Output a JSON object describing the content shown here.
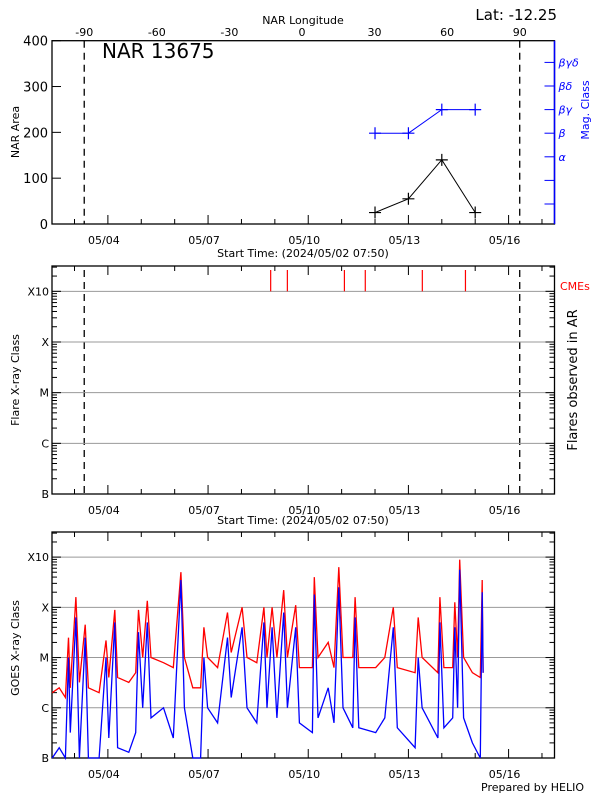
{
  "header": {
    "lat_label": "Lat: -12.25",
    "region_title": "NAR 13675"
  },
  "time_axis": {
    "start": "2024-05-02T07:50",
    "end": "2024-05-17T09:00",
    "tick_labels": [
      "05/04",
      "05/07",
      "05/10",
      "05/13",
      "05/16"
    ],
    "tick_dates": [
      "2024-05-04T00:00",
      "2024-05-07T00:00",
      "2024-05-10T00:00",
      "2024-05-13T00:00",
      "2024-05-16T00:00"
    ],
    "xlabel": "Start Time: (2024/05/02 07:50)"
  },
  "limb_lines": [
    "2024-05-03T07:00",
    "2024-05-16T08:00"
  ],
  "chart_data": [
    {
      "type": "line",
      "title": "NAR 13675",
      "xlabel": "Start Time: (2024/05/02 07:50)",
      "ylabel": "NAR Area",
      "ylim": [
        0,
        400
      ],
      "yticks": [
        "0",
        "100",
        "200",
        "300",
        "400"
      ],
      "top_axis": {
        "label": "NAR Longitude",
        "ticks": [
          "-90",
          "-60",
          "-30",
          "0",
          "30",
          "60",
          "90"
        ]
      },
      "right_axis": {
        "label": "Mag. Class",
        "color": "#0000ff",
        "ticks": [
          "",
          "",
          "α",
          "β",
          "βγ",
          "βδ",
          "βγδ"
        ]
      },
      "x": [
        "2024-05-12T00:00",
        "2024-05-13T00:00",
        "2024-05-14T00:00",
        "2024-05-15T00:00"
      ],
      "series": [
        {
          "axis": "left",
          "color": "#000000",
          "values": [
            25,
            55,
            140,
            25
          ]
        },
        {
          "axis": "right",
          "color": "#0000ff",
          "values": [
            "β",
            "β",
            "βγ",
            "βγ"
          ]
        }
      ]
    },
    {
      "type": "event",
      "xlabel": "Start Time: (2024/05/02 07:50)",
      "ylabel": "Flare X-ray Class",
      "right_label": "Flares observed in AR",
      "yscale": "log",
      "ylim": [
        1e-07,
        0.00316
      ],
      "yticks": [
        "B",
        "C",
        "M",
        "X",
        "X10"
      ],
      "events_label": "CMEs",
      "events_color": "#ff0000",
      "cme_times": [
        "2024-05-08T21:00",
        "2024-05-09T09:00",
        "2024-05-11T02:00",
        "2024-05-11T17:00",
        "2024-05-13T10:00",
        "2024-05-14T17:00"
      ]
    },
    {
      "type": "line",
      "ylabel": "GOES X-ray Class",
      "yscale": "log",
      "ylim": [
        1e-07,
        0.00316
      ],
      "yticks": [
        "B",
        "C",
        "M",
        "X",
        "X10"
      ],
      "x": [
        "2024-05-02T08:00",
        "2024-05-02T13:00",
        "2024-05-02T17:30",
        "2024-05-02T19:40",
        "2024-05-02T21:00",
        "2024-05-03T01:00",
        "2024-05-03T03:30",
        "2024-05-03T07:40",
        "2024-05-03T10:00",
        "2024-05-03T17:40",
        "2024-05-03T22:40",
        "2024-05-04T00:40",
        "2024-05-04T05:00",
        "2024-05-04T07:00",
        "2024-05-04T15:00",
        "2024-05-04T20:00",
        "2024-05-04T22:00",
        "2024-05-05T01:00",
        "2024-05-05T04:20",
        "2024-05-05T07:00",
        "2024-05-05T16:00",
        "2024-05-05T23:00",
        "2024-05-06T04:30",
        "2024-05-06T07:00",
        "2024-05-06T13:00",
        "2024-05-06T18:40",
        "2024-05-06T21:00",
        "2024-05-06T23:40",
        "2024-05-07T06:50",
        "2024-05-07T14:00",
        "2024-05-07T16:40",
        "2024-05-08T00:30",
        "2024-05-08T04:00",
        "2024-05-08T11:00",
        "2024-05-08T16:10",
        "2024-05-08T18:20",
        "2024-05-08T22:00",
        "2024-05-09T01:30",
        "2024-05-09T06:20",
        "2024-05-09T09:00",
        "2024-05-09T15:00",
        "2024-05-09T17:40",
        "2024-05-10T03:00",
        "2024-05-10T04:20",
        "2024-05-10T07:00",
        "2024-05-10T14:20",
        "2024-05-10T18:30",
        "2024-05-10T22:00",
        "2024-05-11T01:00",
        "2024-05-11T08:00",
        "2024-05-11T09:40",
        "2024-05-11T12:20",
        "2024-05-12T00:30",
        "2024-05-12T07:00",
        "2024-05-12T13:10",
        "2024-05-12T16:00",
        "2024-05-13T04:50",
        "2024-05-13T07:00",
        "2024-05-13T09:50",
        "2024-05-13T21:10",
        "2024-05-13T22:40",
        "2024-05-14T01:30",
        "2024-05-14T07:50",
        "2024-05-14T09:20",
        "2024-05-14T11:20",
        "2024-05-14T12:50",
        "2024-05-14T15:40",
        "2024-05-14T22:00",
        "2024-05-15T03:40",
        "2024-05-15T05:00",
        "2024-05-15T05:40"
      ],
      "series": [
        {
          "color": "#ff0000",
          "values": [
            2e-06,
            2.5e-06,
            1.6e-06,
            2.5e-05,
            2.5e-06,
            0.00016,
            3.2e-06,
            4.5e-05,
            2.5e-06,
            2e-06,
            2.2e-05,
            4e-06,
            8.9e-05,
            4e-06,
            3.2e-06,
            5e-06,
            8.9e-05,
            1e-05,
            0.000135,
            1e-05,
            7.9e-06,
            6.3e-06,
            0.0005,
            1e-05,
            2.5e-06,
            2.5e-06,
            4e-05,
            1e-05,
            6.3e-06,
            7.9e-05,
            1.26e-05,
            0.0001,
            1e-05,
            7.9e-06,
            0.0001,
            1e-05,
            0.0001,
            1e-05,
            0.00022,
            1e-05,
            0.00011,
            6.3e-06,
            6.3e-06,
            0.0004,
            1e-05,
            2e-05,
            6.3e-06,
            0.00063,
            1e-05,
            1e-05,
            0.00016,
            6.3e-06,
            6.3e-06,
            1e-05,
            0.0001,
            6.3e-06,
            5e-06,
            6.3e-05,
            1e-05,
            5e-06,
            0.00016,
            6.3e-06,
            6.3e-06,
            0.000126,
            1e-05,
            0.00089,
            1e-05,
            5e-06,
            4e-06,
            0.00035,
            5e-06
          ]
        },
        {
          "color": "#0000ff",
          "values": [
            1e-07,
            1.6e-07,
            1e-07,
            1e-05,
            3.2e-07,
            6.3e-05,
            1e-07,
            2.5e-05,
            1e-07,
            1e-07,
            1e-05,
            2.5e-07,
            5e-05,
            1.6e-07,
            1.3e-07,
            3.2e-07,
            3.2e-05,
            1e-06,
            5e-05,
            6.3e-07,
            1e-06,
            2.5e-07,
            0.00035,
            1e-06,
            1e-07,
            1e-07,
            1e-05,
            1e-06,
            5e-07,
            2.5e-05,
            1.6e-06,
            4e-05,
            1e-06,
            5e-07,
            5e-05,
            1e-06,
            4e-05,
            6.3e-07,
            7.9e-05,
            1e-06,
            4e-05,
            5e-07,
            3.2e-07,
            0.00018,
            6.3e-07,
            2.5e-06,
            5e-07,
            0.00025,
            1e-06,
            4e-07,
            6.3e-05,
            4e-07,
            3.2e-07,
            6.3e-07,
            4e-05,
            4e-07,
            1.6e-07,
            1e-05,
            1e-06,
            2.5e-07,
            5e-05,
            4e-07,
            6.3e-07,
            4e-05,
            1e-06,
            0.00056,
            6.3e-07,
            2e-07,
            1e-07,
            0.0002,
            5e-06
          ]
        }
      ]
    }
  ],
  "footer": {
    "credit": "Prepared by HELIO"
  }
}
